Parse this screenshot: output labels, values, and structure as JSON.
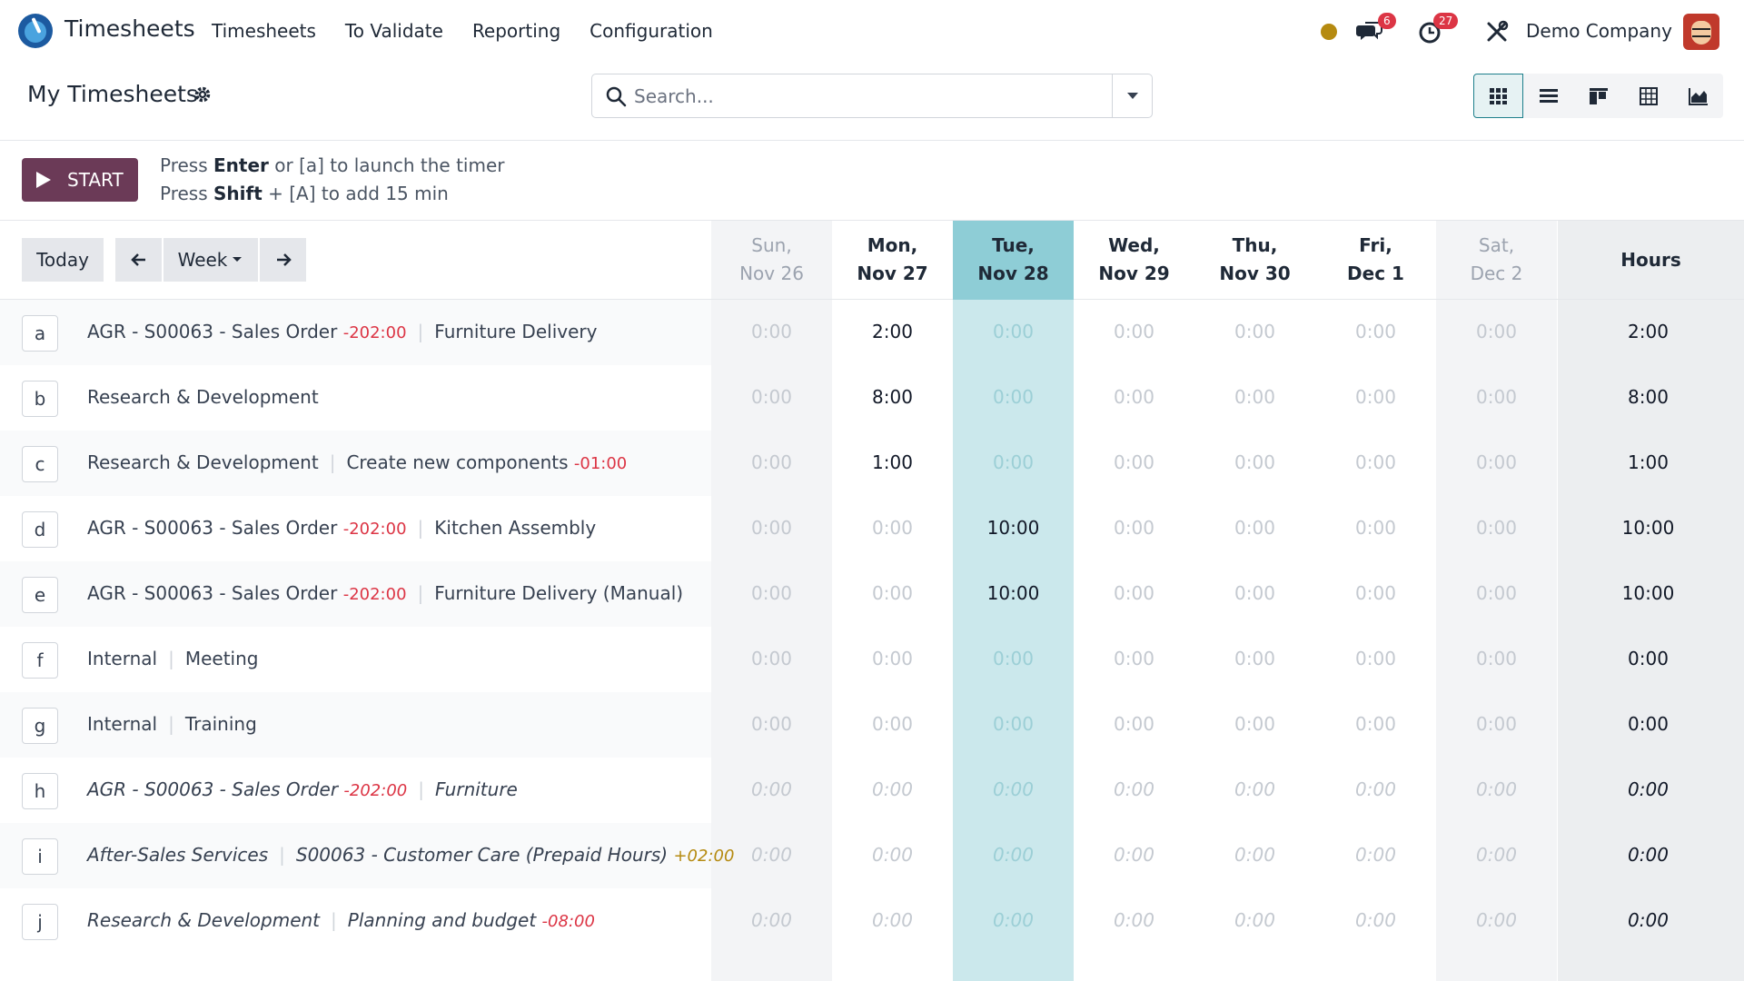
{
  "app": {
    "name": "Timesheets"
  },
  "menu": [
    "Timesheets",
    "To Validate",
    "Reporting",
    "Configuration"
  ],
  "systray": {
    "messages_count": "6",
    "activities_count": "27",
    "company": "Demo Company"
  },
  "page_title": "My Timesheets",
  "search": {
    "placeholder": "Search..."
  },
  "timer": {
    "start_label": "START",
    "hint1_pre": "Press ",
    "hint1_key": "Enter",
    "hint1_post": " or [a] to launch the timer",
    "hint2_pre": "Press ",
    "hint2_key": "Shift",
    "hint2_post": " + [A] to add 15 min"
  },
  "grid_controls": {
    "today": "Today",
    "week": "Week"
  },
  "days": [
    {
      "l1": "Sun,",
      "l2": "Nov 26",
      "weekend": true
    },
    {
      "l1": "Mon,",
      "l2": "Nov 27",
      "weekend": false
    },
    {
      "l1": "Tue,",
      "l2": "Nov 28",
      "weekend": false,
      "today": true
    },
    {
      "l1": "Wed,",
      "l2": "Nov 29",
      "weekend": false
    },
    {
      "l1": "Thu,",
      "l2": "Nov 30",
      "weekend": false
    },
    {
      "l1": "Fri,",
      "l2": "Dec 1",
      "weekend": false
    },
    {
      "l1": "Sat,",
      "l2": "Dec 2",
      "weekend": true
    }
  ],
  "hours_label": "Hours",
  "rows": [
    {
      "key": "a",
      "project": "AGR - S00063 - Sales Order",
      "project_rem": "-202:00",
      "task": "Furniture Delivery",
      "task_rem": "",
      "cells": [
        "0:00",
        "2:00",
        "0:00",
        "0:00",
        "0:00",
        "0:00",
        "0:00"
      ],
      "total": "2:00",
      "italic": false
    },
    {
      "key": "b",
      "project": "Research & Development",
      "project_rem": "",
      "task": "",
      "task_rem": "",
      "cells": [
        "0:00",
        "8:00",
        "0:00",
        "0:00",
        "0:00",
        "0:00",
        "0:00"
      ],
      "total": "8:00",
      "italic": false
    },
    {
      "key": "c",
      "project": "Research & Development",
      "project_rem": "",
      "task": "Create new components",
      "task_rem": "-01:00",
      "cells": [
        "0:00",
        "1:00",
        "0:00",
        "0:00",
        "0:00",
        "0:00",
        "0:00"
      ],
      "total": "1:00",
      "italic": false
    },
    {
      "key": "d",
      "project": "AGR - S00063 - Sales Order",
      "project_rem": "-202:00",
      "task": "Kitchen Assembly",
      "task_rem": "",
      "cells": [
        "0:00",
        "0:00",
        "10:00",
        "0:00",
        "0:00",
        "0:00",
        "0:00"
      ],
      "total": "10:00",
      "italic": false
    },
    {
      "key": "e",
      "project": "AGR - S00063 - Sales Order",
      "project_rem": "-202:00",
      "task": "Furniture Delivery (Manual)",
      "task_rem": "",
      "cells": [
        "0:00",
        "0:00",
        "10:00",
        "0:00",
        "0:00",
        "0:00",
        "0:00"
      ],
      "total": "10:00",
      "italic": false
    },
    {
      "key": "f",
      "project": "Internal",
      "project_rem": "",
      "task": "Meeting",
      "task_rem": "",
      "cells": [
        "0:00",
        "0:00",
        "0:00",
        "0:00",
        "0:00",
        "0:00",
        "0:00"
      ],
      "total": "0:00",
      "italic": false
    },
    {
      "key": "g",
      "project": "Internal",
      "project_rem": "",
      "task": "Training",
      "task_rem": "",
      "cells": [
        "0:00",
        "0:00",
        "0:00",
        "0:00",
        "0:00",
        "0:00",
        "0:00"
      ],
      "total": "0:00",
      "italic": false
    },
    {
      "key": "h",
      "project": "AGR - S00063 - Sales Order",
      "project_rem": "-202:00",
      "task": "Furniture",
      "task_rem": "",
      "cells": [
        "0:00",
        "0:00",
        "0:00",
        "0:00",
        "0:00",
        "0:00",
        "0:00"
      ],
      "total": "0:00",
      "italic": true
    },
    {
      "key": "i",
      "project": "After-Sales Services",
      "project_rem": "",
      "task": "S00063 - Customer Care (Prepaid Hours)",
      "task_rem": "+02:00",
      "cells": [
        "0:00",
        "0:00",
        "0:00",
        "0:00",
        "0:00",
        "0:00",
        "0:00"
      ],
      "total": "0:00",
      "italic": true
    },
    {
      "key": "j",
      "project": "Research & Development",
      "project_rem": "",
      "task": "Planning and budget",
      "task_rem": "-08:00",
      "cells": [
        "0:00",
        "0:00",
        "0:00",
        "0:00",
        "0:00",
        "0:00",
        "0:00"
      ],
      "total": "0:00",
      "italic": true
    }
  ],
  "colors": {
    "primary": "#6b3a57",
    "today_bg": "#cbe8ec",
    "today_head": "#8ecdd6",
    "weekend_bg": "#f3f4f6",
    "hours_bg": "#eceef0"
  }
}
